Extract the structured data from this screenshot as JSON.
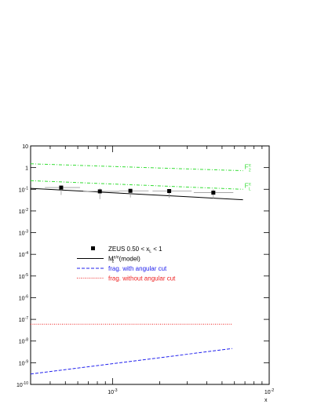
{
  "chart_data": {
    "type": "line",
    "title": "",
    "xlabel": "x",
    "ylabel": "",
    "xscale": "log",
    "yscale": "log",
    "xlim": [
      0.0003,
      0.01
    ],
    "ylim": [
      1e-10,
      10
    ],
    "grid": false,
    "legend_position": "center",
    "y_ticks": [
      {
        "exp": 1,
        "label": "10"
      },
      {
        "exp": 0,
        "label": "1"
      },
      {
        "exp": -1,
        "label": "10-1"
      },
      {
        "exp": -2,
        "label": "10-2"
      },
      {
        "exp": -3,
        "label": "10-3"
      },
      {
        "exp": -4,
        "label": "10-4"
      },
      {
        "exp": -5,
        "label": "10-5"
      },
      {
        "exp": -6,
        "label": "10-6"
      },
      {
        "exp": -7,
        "label": "10-7"
      },
      {
        "exp": -8,
        "label": "10-8"
      },
      {
        "exp": -9,
        "label": "10-9"
      },
      {
        "exp": -10,
        "label": "10-10"
      }
    ],
    "x_ticks": [
      {
        "exp": -3,
        "label": "10-3"
      },
      {
        "exp": -2,
        "label": "10-2"
      }
    ],
    "points": {
      "name": "ZEUS 0.50 < xL < 1",
      "color": "#000000",
      "x": [
        0.00047,
        0.00083,
        0.0013,
        0.0023,
        0.0044
      ],
      "y": [
        0.12,
        0.08,
        0.085,
        0.083,
        0.07
      ],
      "y_err_low": [
        0.055,
        0.035,
        0.042,
        0.04,
        0.036
      ],
      "y_err_high": [
        0.11,
        0.11,
        0.1,
        0.1,
        0.1
      ],
      "x_err_low": [
        0.00037,
        0.00065,
        0.0011,
        0.0018,
        0.0033
      ],
      "x_err_high": [
        0.00062,
        0.0011,
        0.0017,
        0.0032,
        0.0059
      ]
    },
    "series": [
      {
        "name": "M2e/e (model)",
        "style": "solid",
        "color": "#000000",
        "x": [
          0.0003,
          0.0068
        ],
        "y": [
          0.11,
          0.033
        ]
      },
      {
        "name": "frag. with angular cut",
        "style": "dashed",
        "color": "#2222ee",
        "x": [
          0.0003,
          0.0058
        ],
        "y": [
          3e-10,
          4.5e-09
        ]
      },
      {
        "name": "frag. without angular cut",
        "style": "dotted",
        "color": "#ee2222",
        "x": [
          0.0003,
          0.0058
        ],
        "y": [
          6e-08,
          6e-08
        ]
      },
      {
        "name": "F2π",
        "style": "dash-dot",
        "color": "#33dd33",
        "x": [
          0.0003,
          0.0068
        ],
        "y": [
          1.5,
          0.72
        ]
      },
      {
        "name": "FLπ",
        "style": "dash-dot",
        "color": "#33dd33",
        "x": [
          0.0003,
          0.0068
        ],
        "y": [
          0.25,
          0.1
        ]
      }
    ],
    "curve_labels": [
      {
        "main": "F",
        "sup": "π",
        "sub": "2"
      },
      {
        "main": "F",
        "sup": "π",
        "sub": "L"
      }
    ],
    "legend": [
      {
        "marker": "square",
        "text": "ZEUS  0.50 < x",
        "sub": "L",
        "tail": " < 1",
        "color": "#000000"
      },
      {
        "marker": "solid",
        "text": "M",
        "sub": "2",
        "sup": "e/e",
        "tail": " (model)",
        "color": "#000000"
      },
      {
        "marker": "dashed",
        "text": "frag. with angular cut",
        "color": "#2222ee"
      },
      {
        "marker": "dotted",
        "text": "frag. without angular cut",
        "color": "#ee2222"
      }
    ]
  }
}
